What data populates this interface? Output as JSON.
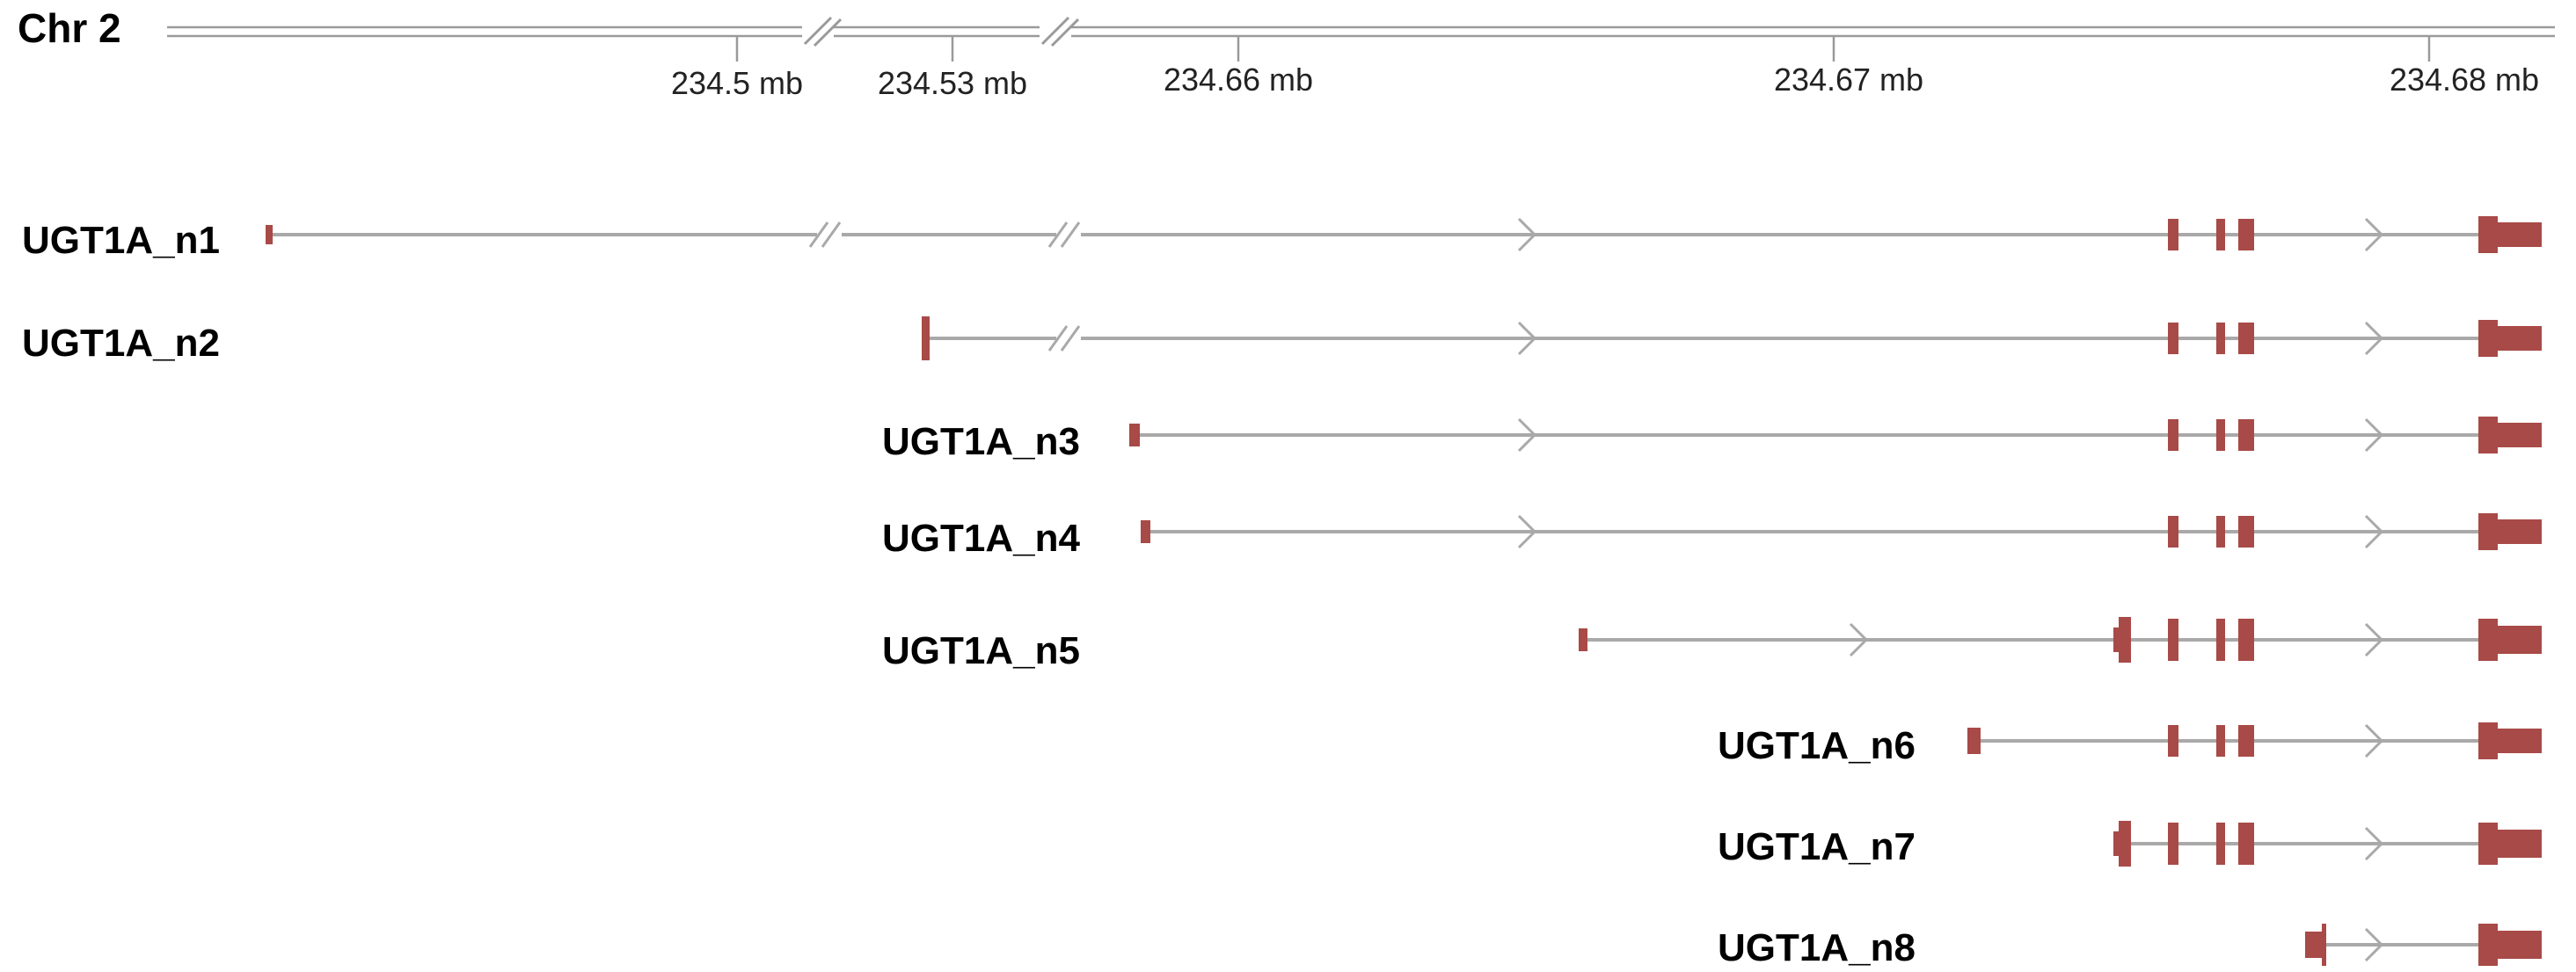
{
  "chromosome": {
    "label": "Chr 2"
  },
  "axis": {
    "ticks": [
      "234.5 mb",
      "234.53 mb",
      "234.66 mb",
      "234.67 mb",
      "234.68 mb"
    ]
  },
  "colors": {
    "exon": "#a84a47",
    "intron": "#a9a9a9",
    "axis": "#9a9a9a"
  },
  "transcripts": [
    {
      "name": "UGT1A_n1"
    },
    {
      "name": "UGT1A_n2"
    },
    {
      "name": "UGT1A_n3"
    },
    {
      "name": "UGT1A_n4"
    },
    {
      "name": "UGT1A_n5"
    },
    {
      "name": "UGT1A_n6"
    },
    {
      "name": "UGT1A_n7"
    },
    {
      "name": "UGT1A_n8"
    }
  ]
}
